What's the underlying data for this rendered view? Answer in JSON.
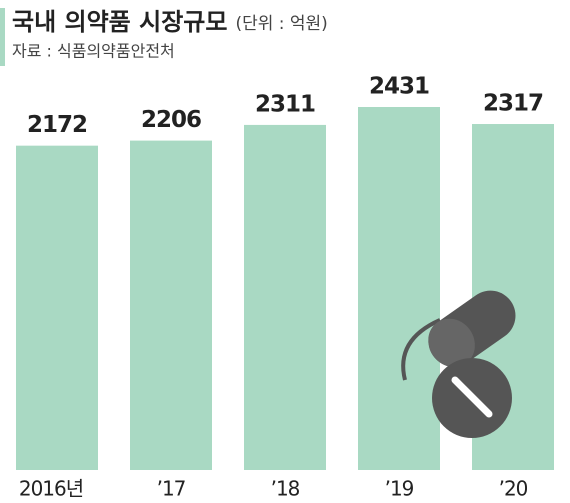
{
  "chart_data": {
    "type": "bar",
    "title": "국내 의약품 시장규모",
    "subtitle": "(단위 : 억원)",
    "source": "자료 : 식품의약품안전처",
    "categories": [
      "2016년",
      "’17",
      "’18",
      "’19",
      "’20"
    ],
    "values": [
      2172,
      2206,
      2311,
      2431,
      2317
    ],
    "color": "#a9d9c3"
  }
}
